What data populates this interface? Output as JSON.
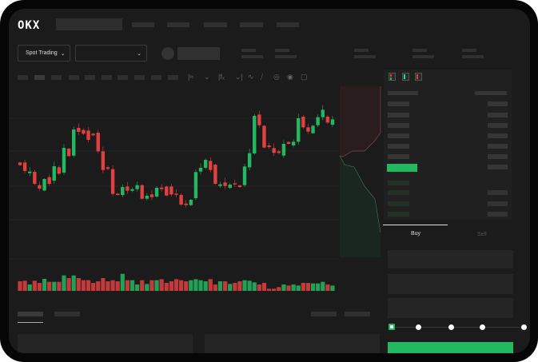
{
  "header": {
    "logo": "OKX"
  },
  "market": {
    "trading_type": "Spot Trading",
    "trading_type_chevron": "chevron-down-icon",
    "pair_chevron": "chevron-down-icon"
  },
  "toolbar": {
    "icons": [
      "line-style-icon",
      "chevron-down-icon",
      "indicator-icon",
      "chevron-down-icon",
      "wave-icon",
      "ruler-icon",
      "camera-icon",
      "settings-icon",
      "fullscreen-icon"
    ]
  },
  "orderbook": {
    "view_icons": [
      "both-sides-icon",
      "bids-only-icon",
      "asks-only-icon"
    ]
  },
  "trade": {
    "tabs": [
      {
        "label": "Buy",
        "active": true
      },
      {
        "label": "Sell",
        "active": false
      }
    ],
    "slider_value": 0,
    "slider_stops": 5,
    "submit_color": "#22b862"
  },
  "colors": {
    "up": "#22b862",
    "down": "#e0403f",
    "background": "#1b1b1b"
  },
  "chart_data": {
    "type": "candlestick",
    "candles": [
      [
        25.0,
        24.0
      ],
      [
        25.0,
        21.8
      ],
      [
        21.0,
        21.6
      ],
      [
        21.5,
        17.0
      ],
      [
        16.5,
        15.2
      ],
      [
        14.5,
        18.8
      ],
      [
        19.5,
        17.0
      ],
      [
        18.2,
        23.6
      ],
      [
        23.2,
        20.8
      ],
      [
        21.2,
        30.5
      ],
      [
        30.2,
        27.4
      ],
      [
        27.6,
        37.4
      ],
      [
        38.0,
        36.5
      ],
      [
        37.2,
        35.8
      ],
      [
        37.0,
        33.5
      ],
      [
        35.8,
        35.2
      ],
      [
        36.2,
        29.2
      ],
      [
        29.2,
        22.2
      ],
      [
        23.2,
        22.6
      ],
      [
        22.5,
        13.2
      ],
      [
        13.3,
        12.8
      ],
      [
        12.8,
        15.8
      ],
      [
        16.0,
        14.4
      ],
      [
        14.4,
        15.0
      ],
      [
        15.0,
        16.5
      ],
      [
        16.5,
        11.4
      ],
      [
        11.4,
        12.5
      ],
      [
        13.0,
        12.0
      ],
      [
        12.2,
        15.5
      ],
      [
        15.6,
        15.0
      ],
      [
        16.0,
        12.6
      ],
      [
        16.0,
        13.0
      ],
      [
        13.3,
        13.0
      ],
      [
        12.8,
        9.2
      ],
      [
        9.6,
        9.0
      ],
      [
        9.0,
        11.0
      ],
      [
        11.6,
        21.4
      ],
      [
        21.6,
        23.0
      ],
      [
        23.0,
        26.0
      ],
      [
        25.6,
        22.2
      ],
      [
        24.2,
        17.0
      ],
      [
        16.2,
        16.8
      ],
      [
        17.5,
        16.2
      ],
      [
        15.5,
        16.7
      ],
      [
        17.2,
        16.8
      ],
      [
        16.4,
        15.8
      ],
      [
        16.5,
        23.5
      ],
      [
        23.2,
        28.5
      ],
      [
        28.4,
        42.5
      ],
      [
        43.0,
        39.0
      ],
      [
        38.8,
        30.6
      ],
      [
        31.4,
        30.8
      ],
      [
        30.4,
        28.6
      ],
      [
        29.2,
        28.6
      ],
      [
        27.6,
        32.0
      ],
      [
        32.7,
        32.0
      ],
      [
        31.4,
        32.8
      ],
      [
        32.8,
        41.6
      ],
      [
        42.2,
        38.2
      ],
      [
        38.2,
        36.6
      ],
      [
        36.0,
        38.8
      ],
      [
        39.0,
        42.0
      ],
      [
        42.0,
        44.8
      ],
      [
        42.2,
        40.0
      ],
      [
        39.2,
        41.2
      ]
    ],
    "volumes": [
      36,
      38,
      24,
      38,
      30,
      45,
      34,
      34,
      34,
      58,
      48,
      58,
      48,
      40,
      40,
      30,
      36,
      48,
      36,
      40,
      36,
      64,
      40,
      40,
      24,
      40,
      26,
      40,
      40,
      44,
      30,
      36,
      44,
      40,
      36,
      40,
      44,
      40,
      36,
      44,
      24,
      36,
      36,
      26,
      30,
      36,
      40,
      38,
      32,
      24,
      30,
      8,
      8,
      14,
      24,
      20,
      24,
      20,
      30,
      30,
      28,
      28,
      34,
      24,
      20
    ],
    "ylim": [
      0,
      50
    ],
    "grid": true,
    "axis_labels_visible": false
  }
}
